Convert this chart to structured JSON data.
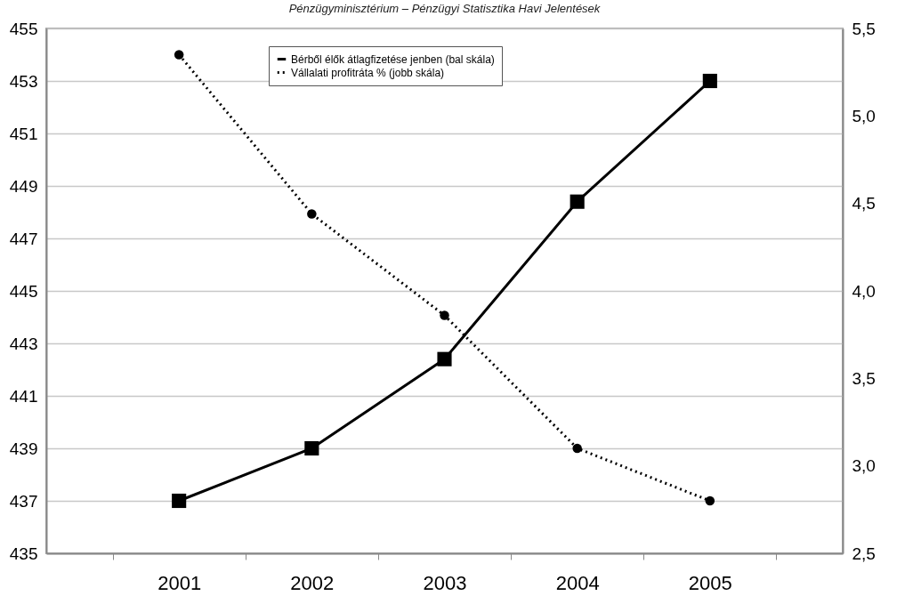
{
  "chart_data": {
    "type": "line",
    "title": "Pénzügyminisztérium – Pénzügyi Statisztika Havi Jelentések",
    "categories": [
      "2001",
      "2002",
      "2003",
      "2004",
      "2005"
    ],
    "series": [
      {
        "name": "Bérből élők átlagfizetése jenben (bal skála)",
        "color": "#000000",
        "marker": "square",
        "line_style": "solid",
        "values": [
          437,
          439,
          442.4,
          448.4,
          453
        ]
      },
      {
        "name": "Vállalati profitráta % (jobb skála)",
        "color": "#000000",
        "marker": "circle",
        "line_style": "dotted",
        "axis": "y2",
        "values": [
          5.35,
          4.44,
          3.86,
          3.1,
          2.8
        ]
      }
    ],
    "ylim": [
      435,
      455
    ],
    "yticks": [
      435,
      437,
      439,
      441,
      443,
      445,
      447,
      449,
      451,
      453,
      455
    ],
    "y2lim": [
      2.5,
      5.5
    ],
    "y2ticks": [
      {
        "value": 2.5,
        "label": "2,5"
      },
      {
        "value": 3,
        "label": "3,0"
      },
      {
        "value": 3.5,
        "label": "3,5"
      },
      {
        "value": 4,
        "label": "4,0"
      },
      {
        "value": 4.5,
        "label": "4,5"
      },
      {
        "value": 5,
        "label": "5,0"
      },
      {
        "value": 5.5,
        "label": "5,5"
      }
    ],
    "grid": "y",
    "legend": "top"
  }
}
